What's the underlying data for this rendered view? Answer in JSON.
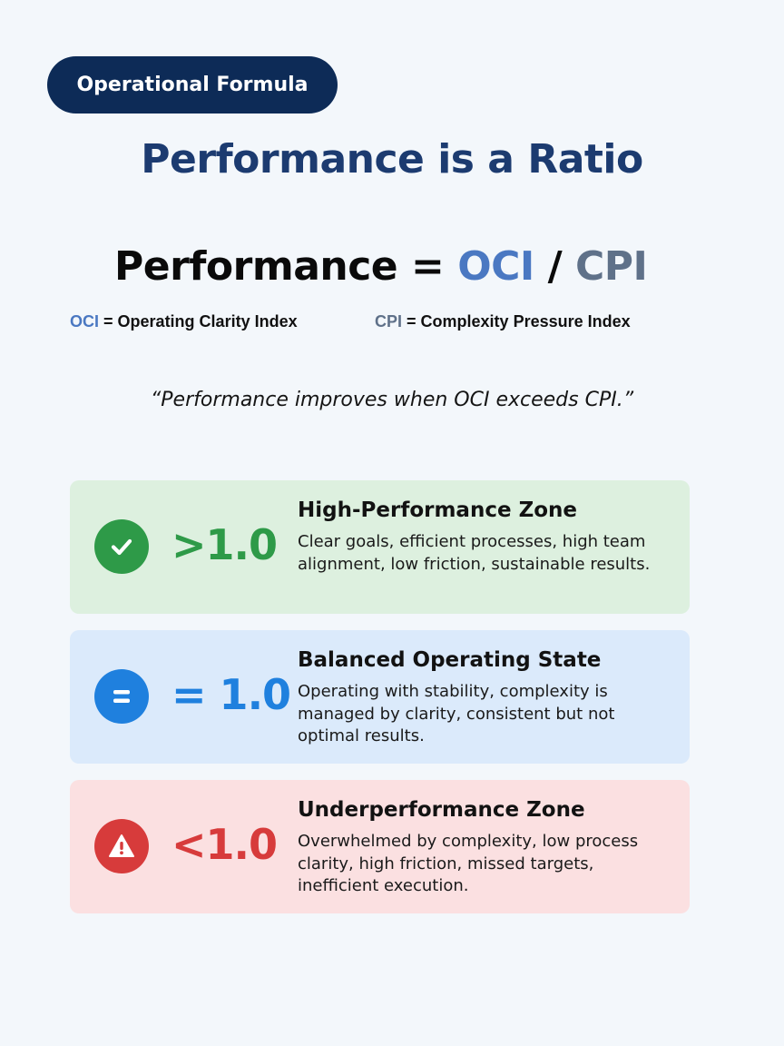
{
  "header": {
    "pill_label": "Operational Formula",
    "title": "Performance is a Ratio"
  },
  "formula": {
    "lhs": "Performance",
    "equals": "=",
    "numerator": "OCI",
    "divider": "/",
    "denominator": "CPI"
  },
  "definitions": {
    "oci_abbr": "OCI",
    "oci_text": "= Operating Clarity Index",
    "cpi_abbr": "CPI",
    "cpi_text": "= Complexity Pressure Index"
  },
  "quote": "“Performance improves when OCI exceeds CPI.”",
  "zones": [
    {
      "icon": "checkmark-icon",
      "ratio": ">1.0",
      "title": "High-Performance Zone",
      "description": "Clear goals, efficient processes, high team alignment, low friction, sustainable results.",
      "color": "#2e9a48"
    },
    {
      "icon": "equals-icon",
      "ratio": "= 1.0",
      "title": "Balanced Operating State",
      "description": "Operating with stability, complexity is managed by clarity, consistent but not optimal results.",
      "color": "#1f80de"
    },
    {
      "icon": "warning-icon",
      "ratio": "<1.0",
      "title": "Underperformance Zone",
      "description": "Overwhelmed by complexity, low process clarity, high friction, missed targets, inefficient execution.",
      "color": "#d73b3b"
    }
  ]
}
